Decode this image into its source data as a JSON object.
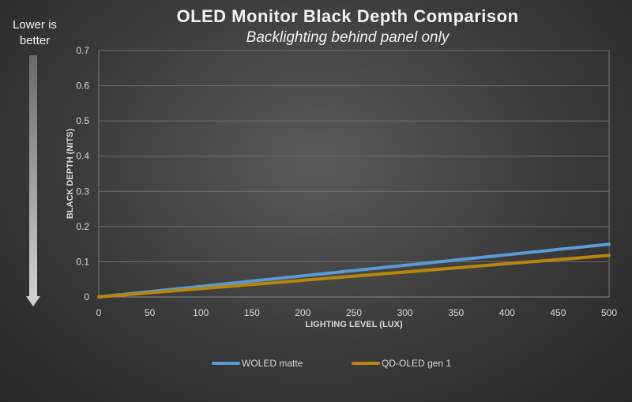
{
  "note": {
    "line1": "Lower is",
    "line2": "better"
  },
  "chart_data": {
    "type": "line",
    "title": "OLED Monitor Black Depth Comparison",
    "subtitle": "Backlighting behind panel only",
    "xlabel": "LIGHTING LEVEL (LUX)",
    "ylabel": "BLACK DEPTH (NITS)",
    "xlim": [
      0,
      500
    ],
    "ylim": [
      0,
      0.7
    ],
    "x_ticks": [
      0,
      50,
      100,
      150,
      200,
      250,
      300,
      350,
      400,
      450,
      500
    ],
    "y_ticks": [
      0,
      0.1,
      0.2,
      0.3,
      0.4,
      0.5,
      0.6,
      0.7
    ],
    "y_tick_labels": [
      "0",
      "0.1",
      "0.2",
      "0.3",
      "0.4",
      "0.5",
      "0.6",
      "0.7"
    ],
    "grid": "horizontal",
    "legend_position": "bottom",
    "series": [
      {
        "name": "WOLED matte",
        "color": "#5b9bd5",
        "x": [
          0,
          500
        ],
        "y": [
          0,
          0.15
        ]
      },
      {
        "name": "QD-OLED gen 1",
        "color": "#b8860b",
        "x": [
          0,
          500
        ],
        "y": [
          0,
          0.118
        ]
      }
    ]
  }
}
